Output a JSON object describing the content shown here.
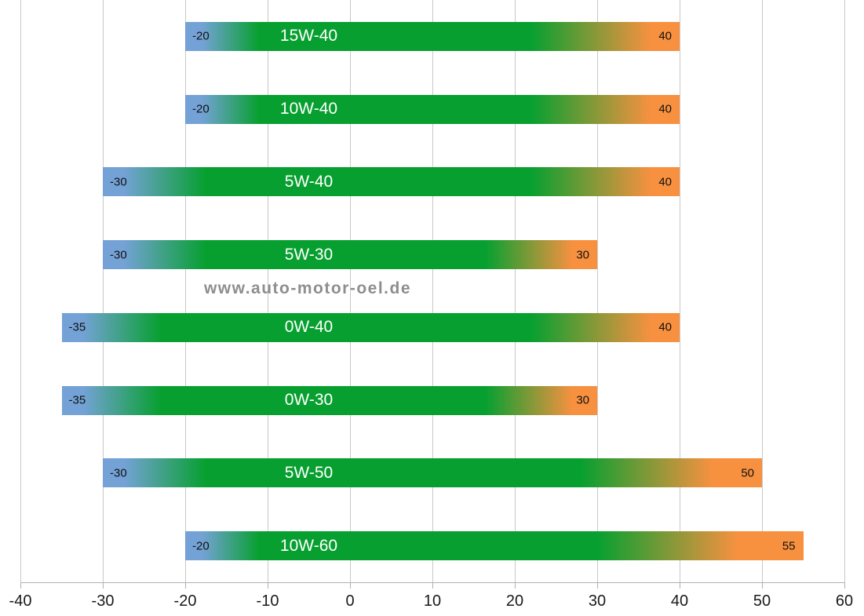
{
  "watermark": {
    "text": "www.auto-motor-oel.de"
  },
  "colors": {
    "cold": "#74a2d6",
    "ok": "#07a030",
    "hot": "#f79140",
    "gridline": "#c8c8c8",
    "axis": "#b0b0b0",
    "watermark": "#8e8e8e",
    "bar_label": "#ffffff",
    "value_label": "#111111"
  },
  "chart_data": {
    "type": "bar",
    "orientation": "horizontal",
    "title": "",
    "xlabel": "",
    "ylabel": "",
    "xlim": [
      -40,
      60
    ],
    "xticks": [
      -40,
      -30,
      -20,
      -10,
      0,
      10,
      20,
      30,
      40,
      50,
      60
    ],
    "grid": true,
    "legend": false,
    "category_label_anchor_value": -5,
    "categories": [
      "15W-40",
      "10W-40",
      "5W-40",
      "5W-30",
      "0W-40",
      "0W-30",
      "5W-50",
      "10W-60"
    ],
    "bars": [
      {
        "label": "15W-40",
        "min": -20,
        "max": 40,
        "min_label": "-20",
        "max_label": "40",
        "blend": {
          "blue_until": -18,
          "green_from": -11,
          "green_to": 22,
          "orange_from": 36.5
        }
      },
      {
        "label": "10W-40",
        "min": -20,
        "max": 40,
        "min_label": "-20",
        "max_label": "40",
        "blend": {
          "blue_until": -18,
          "green_from": -11,
          "green_to": 22,
          "orange_from": 36.5
        }
      },
      {
        "label": "5W-40",
        "min": -30,
        "max": 40,
        "min_label": "-30",
        "max_label": "40",
        "blend": {
          "blue_until": -27.5,
          "green_from": -17.5,
          "green_to": 22,
          "orange_from": 36.5
        }
      },
      {
        "label": "5W-30",
        "min": -30,
        "max": 30,
        "min_label": "-30",
        "max_label": "30",
        "blend": {
          "blue_until": -27.5,
          "green_from": -17.5,
          "green_to": 16.5,
          "orange_from": 27
        }
      },
      {
        "label": "0W-40",
        "min": -35,
        "max": 40,
        "min_label": "-35",
        "max_label": "40",
        "blend": {
          "blue_until": -32.5,
          "green_from": -23,
          "green_to": 22,
          "orange_from": 36.5
        }
      },
      {
        "label": "0W-30",
        "min": -35,
        "max": 30,
        "min_label": "-35",
        "max_label": "30",
        "blend": {
          "blue_until": -32.5,
          "green_from": -23,
          "green_to": 16.5,
          "orange_from": 27
        }
      },
      {
        "label": "5W-50",
        "min": -30,
        "max": 50,
        "min_label": "-30",
        "max_label": "50",
        "blend": {
          "blue_until": -27.5,
          "green_from": -17.5,
          "green_to": 28,
          "orange_from": 44
        }
      },
      {
        "label": "10W-60",
        "min": -20,
        "max": 55,
        "min_label": "-20",
        "max_label": "55",
        "blend": {
          "blue_until": -18,
          "green_from": -11,
          "green_to": 30,
          "orange_from": 47
        }
      }
    ]
  }
}
